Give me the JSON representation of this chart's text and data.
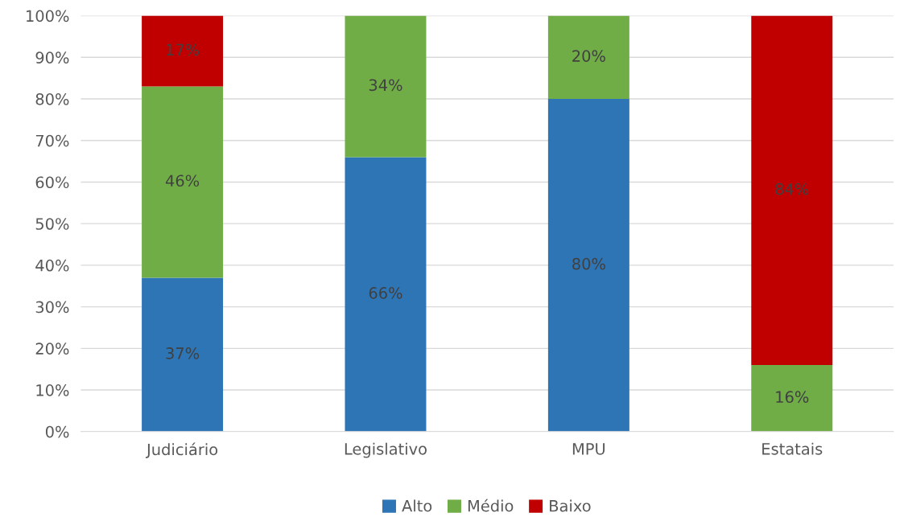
{
  "chart_data": {
    "type": "bar",
    "stacked": true,
    "categories": [
      "Judiciário",
      "Legislativo",
      "MPU",
      "Estatais"
    ],
    "series": [
      {
        "name": "Alto",
        "color": "#2e75b6",
        "values": [
          37,
          66,
          80,
          0
        ],
        "value_labels": [
          "37%",
          "66%",
          "80%",
          null
        ]
      },
      {
        "name": "Médio",
        "color": "#70ad47",
        "values": [
          46,
          34,
          20,
          16
        ],
        "value_labels": [
          "46%",
          "34%",
          "20%",
          "16%"
        ]
      },
      {
        "name": "Baixo",
        "color": "#c00000",
        "values": [
          17,
          0,
          0,
          84
        ],
        "value_labels": [
          "17%",
          null,
          null,
          "84%"
        ]
      }
    ],
    "ylim": [
      0,
      100
    ],
    "yticks": [
      {
        "value": 0,
        "label": "0%"
      },
      {
        "value": 10,
        "label": "10%"
      },
      {
        "value": 20,
        "label": "20%"
      },
      {
        "value": 30,
        "label": "30%"
      },
      {
        "value": 40,
        "label": "40%"
      },
      {
        "value": 50,
        "label": "50%"
      },
      {
        "value": 60,
        "label": "60%"
      },
      {
        "value": 70,
        "label": "70%"
      },
      {
        "value": 80,
        "label": "80%"
      },
      {
        "value": 90,
        "label": "90%"
      },
      {
        "value": 100,
        "label": "100%"
      }
    ],
    "grid": "y",
    "legend": "bottom"
  }
}
